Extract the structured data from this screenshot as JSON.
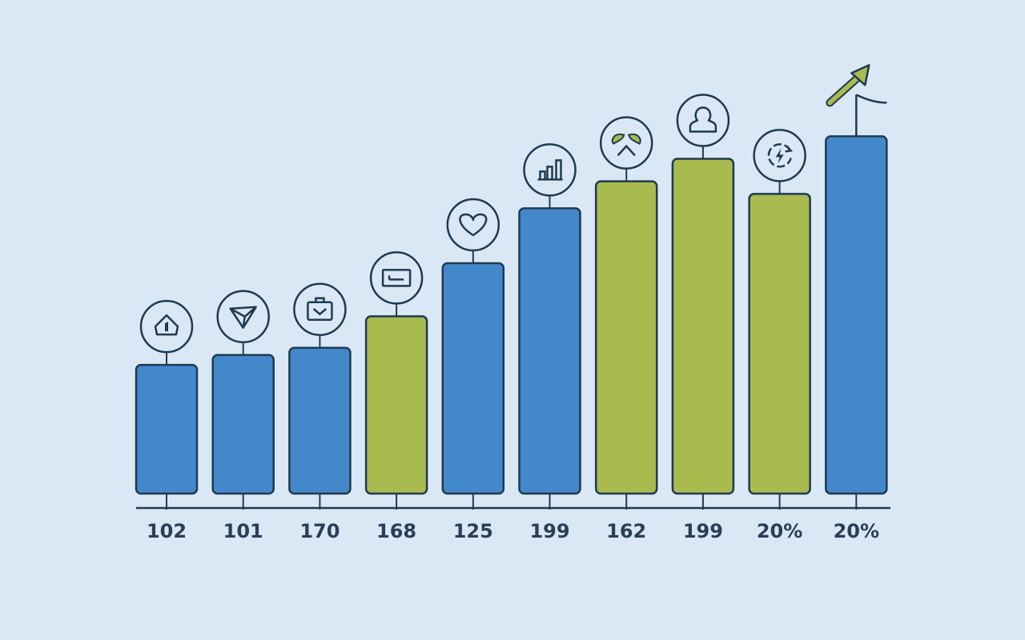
{
  "chart_data": {
    "type": "bar",
    "categories": [
      "102",
      "101",
      "170",
      "168",
      "125",
      "199",
      "162",
      "199",
      "20%",
      "20%"
    ],
    "values": [
      143,
      154,
      162,
      197,
      256,
      317,
      347,
      372,
      333,
      397
    ],
    "value_units": "bar height (unlabelled axis)",
    "icons": [
      "alert-hexagon-icon",
      "paper-plane-icon",
      "briefcase-check-icon",
      "card-icon",
      "heart-icon",
      "bar-chart-icon",
      "leaf-chevron-icon",
      "person-icon",
      "refresh-bolt-icon",
      "trend-arrow-icon"
    ],
    "bar_colors": [
      "blue",
      "blue",
      "blue",
      "green",
      "blue",
      "blue",
      "green",
      "green",
      "green",
      "blue"
    ],
    "ylim": [
      0,
      450
    ],
    "grid": false,
    "legend": "none",
    "title": "",
    "xlabel": "",
    "ylabel": ""
  },
  "colors": {
    "background": "#dae8f6",
    "blue": "#4488cc",
    "green": "#a9ba4f",
    "outline": "#1f3a50",
    "text": "#2a3f55"
  }
}
